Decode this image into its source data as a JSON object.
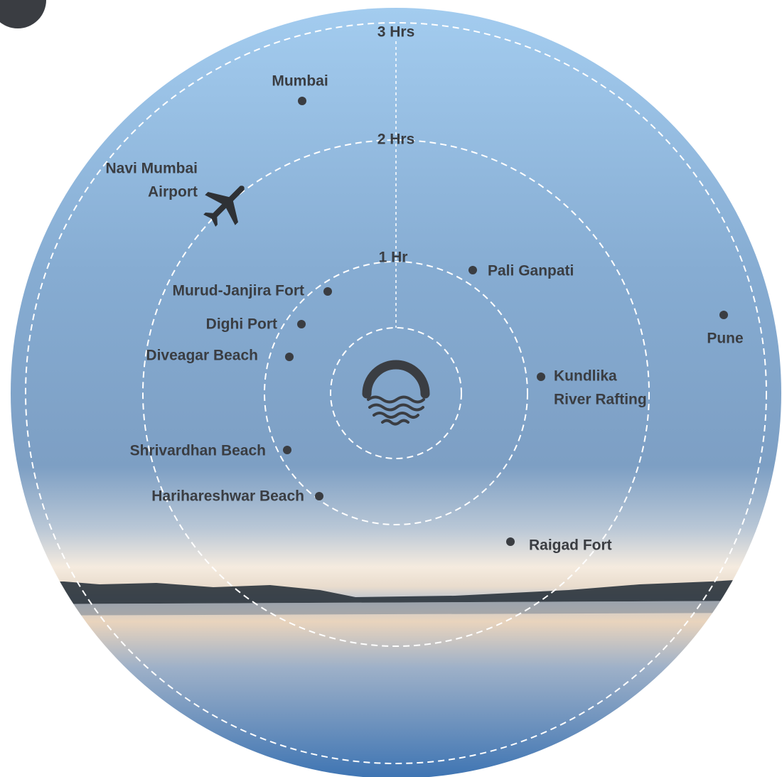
{
  "rings": [
    {
      "label": "3 Hrs"
    },
    {
      "label": "2 Hrs"
    },
    {
      "label": "1 Hr"
    }
  ],
  "places": [
    {
      "lines": [
        "Mumbai"
      ]
    },
    {
      "lines": [
        "Navi Mumbai",
        "Airport"
      ]
    },
    {
      "lines": [
        "Pali Ganpati"
      ]
    },
    {
      "lines": [
        "Murud-Janjira Fort"
      ]
    },
    {
      "lines": [
        "Dighi Port"
      ]
    },
    {
      "lines": [
        "Diveagar Beach"
      ]
    },
    {
      "lines": [
        "Kundlika",
        "River Rafting"
      ]
    },
    {
      "lines": [
        "Pune"
      ]
    },
    {
      "lines": [
        "Shrivardhan Beach"
      ]
    },
    {
      "lines": [
        "Harihareshwar Beach"
      ]
    },
    {
      "lines": [
        "Raigad Fort"
      ]
    }
  ]
}
